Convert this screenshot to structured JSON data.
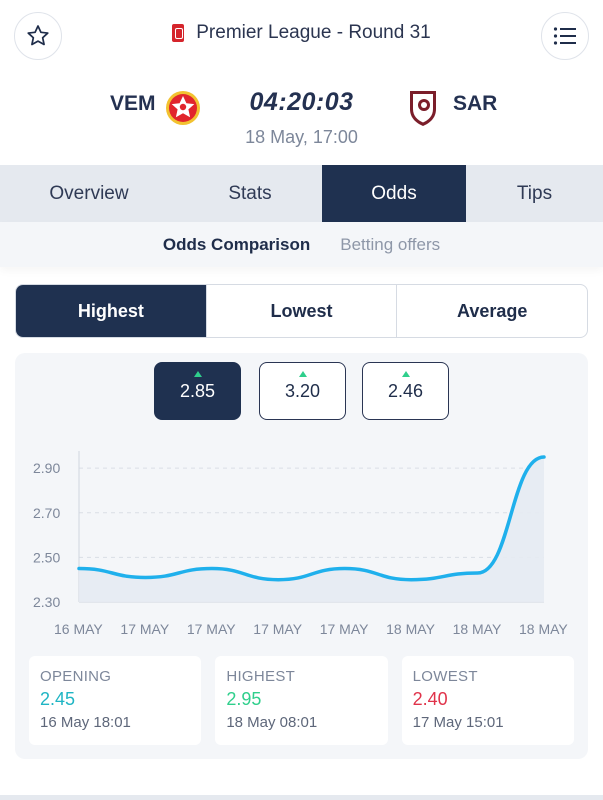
{
  "header": {
    "league_title": "Premier League - Round 31",
    "favorite_icon": "star-icon",
    "menu_icon": "list-icon"
  },
  "match": {
    "home_code": "VEM",
    "away_code": "SAR",
    "countdown": "04:20:03",
    "kickoff": "18 May, 17:00"
  },
  "tabs": [
    {
      "label": "Overview",
      "active": false
    },
    {
      "label": "Stats",
      "active": false
    },
    {
      "label": "Odds",
      "active": true
    },
    {
      "label": "Tips",
      "active": false
    }
  ],
  "subtabs": [
    {
      "label": "Odds Comparison",
      "active": true
    },
    {
      "label": "Betting offers",
      "active": false
    }
  ],
  "segments": [
    {
      "label": "Highest",
      "active": true
    },
    {
      "label": "Lowest",
      "active": false
    },
    {
      "label": "Average",
      "active": false
    }
  ],
  "odds_buttons": [
    {
      "value": "2.85",
      "active": true,
      "trend": "up"
    },
    {
      "value": "3.20",
      "active": false,
      "trend": "up"
    },
    {
      "value": "2.46",
      "active": false,
      "trend": "up"
    }
  ],
  "colors": {
    "navy": "#1f3150",
    "line": "#1fb0ec",
    "area": "#e6ebf2",
    "up_arrow": "#2fcf8c",
    "opening": "#1fb5c4",
    "highest": "#2fcf8c",
    "lowest": "#e0334a"
  },
  "chart_data": {
    "type": "area",
    "title": "",
    "xlabel": "",
    "ylabel": "",
    "x": [
      "16 MAY",
      "17 MAY",
      "17 MAY",
      "17 MAY",
      "17 MAY",
      "18 MAY",
      "18 MAY",
      "18 MAY"
    ],
    "y_ticks": [
      "2.90",
      "2.70",
      "2.50",
      "2.30"
    ],
    "ylim": [
      2.3,
      2.95
    ],
    "grid": true,
    "series": [
      {
        "values": [
          2.45,
          2.41,
          2.45,
          2.4,
          2.45,
          2.4,
          2.43,
          2.95
        ]
      }
    ]
  },
  "stats": [
    {
      "label": "OPENING",
      "value": "2.45",
      "date": "16 May 18:01",
      "tone": "teal"
    },
    {
      "label": "HIGHEST",
      "value": "2.95",
      "date": "18 May 08:01",
      "tone": "green"
    },
    {
      "label": "LOWEST",
      "value": "2.40",
      "date": "17 May 15:01",
      "tone": "red"
    }
  ]
}
